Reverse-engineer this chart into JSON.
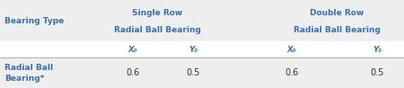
{
  "bg_color": "#eeeeee",
  "white_color": "#ffffff",
  "header_color": "#3a6fad",
  "data_color": "#333333",
  "col1_header": "Bearing Type",
  "single_row_label1": "Single Row",
  "single_row_label2": "Radial Ball Bearing",
  "double_row_label1": "Double Row",
  "double_row_label2": "Radial Ball Bearing",
  "sub_col_x": "X₀",
  "sub_col_y": "Y₀",
  "row_label_line1": "Radial Ball",
  "row_label_line2": "Bearing*",
  "val_x1": "0.6",
  "val_y1": "0.5",
  "val_x2": "0.6",
  "val_y2": "0.5",
  "fig_w": 4.5,
  "fig_h": 0.98,
  "dpi": 100,
  "line_color": "#aaaaaa",
  "fs_main": 6.5,
  "fs_sub": 6.2,
  "fs_data": 7.0
}
